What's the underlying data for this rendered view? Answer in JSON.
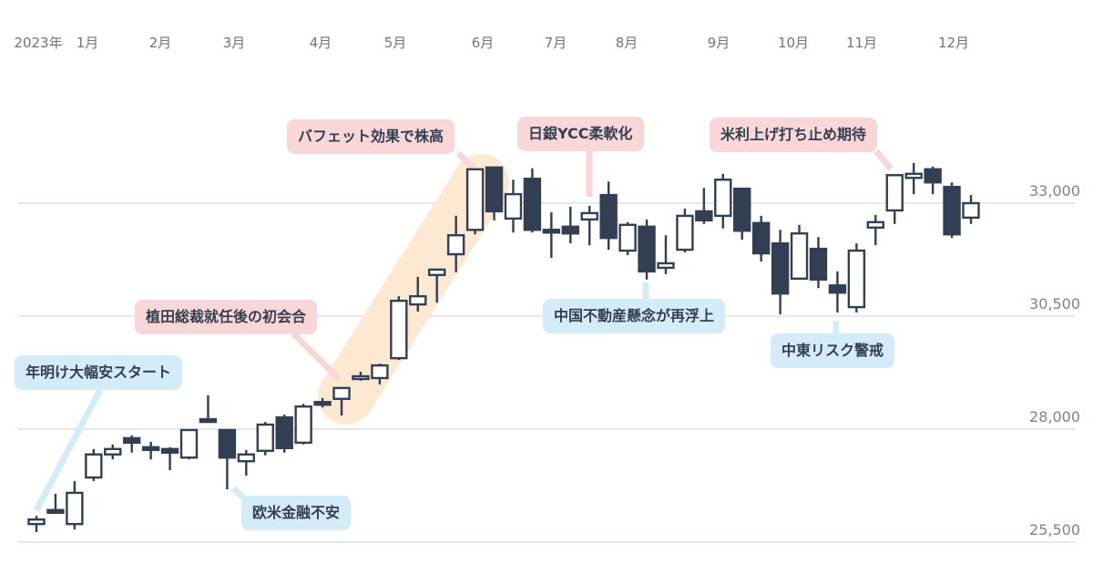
{
  "chart_data": {
    "type": "candlestick",
    "title": "",
    "xlabel": "",
    "ylabel": "",
    "x_tick_labels": [
      "2023年",
      "1月",
      "2月",
      "3月",
      "4月",
      "5月",
      "6月",
      "7月",
      "8月",
      "9月",
      "10月",
      "11月",
      "12月"
    ],
    "y_ticks": [
      25500,
      28000,
      30500,
      33000
    ],
    "y_tick_labels": [
      "25,500",
      "28,000",
      "30,500",
      "33,000"
    ],
    "grid": "horizontal",
    "colors": {
      "up": "#ffffff",
      "down": "#323f52",
      "outline": "#323f52",
      "grid": "#e3e7ef",
      "highlight_band": "#fde8d2",
      "callout_pink": "#f9d6d8",
      "callout_blue": "#d4ecf8"
    },
    "ohlc": [
      [
        25900,
        26080,
        25720,
        26000
      ],
      [
        26210,
        26570,
        26150,
        26170
      ],
      [
        25900,
        26850,
        25780,
        26590
      ],
      [
        26930,
        27560,
        26850,
        27440
      ],
      [
        27440,
        27660,
        27330,
        27560
      ],
      [
        27800,
        27860,
        27480,
        27700
      ],
      [
        27600,
        27720,
        27330,
        27590
      ],
      [
        27560,
        27600,
        27090,
        27480
      ],
      [
        27370,
        27980,
        27330,
        27980
      ],
      [
        28220,
        28750,
        28180,
        28200
      ],
      [
        27980,
        27980,
        26670,
        27370
      ],
      [
        27290,
        27540,
        26970,
        27440
      ],
      [
        27520,
        28160,
        27420,
        28100
      ],
      [
        28260,
        28320,
        27480,
        27580
      ],
      [
        27700,
        28560,
        27660,
        28500
      ],
      [
        28600,
        28690,
        28480,
        28560
      ],
      [
        28670,
        28910,
        28300,
        28910
      ],
      [
        29110,
        29270,
        29070,
        29170
      ],
      [
        29130,
        29450,
        28990,
        29410
      ],
      [
        29570,
        30940,
        29530,
        30840
      ],
      [
        30760,
        31370,
        30600,
        30940
      ],
      [
        31410,
        31530,
        30800,
        31530
      ],
      [
        31870,
        32720,
        31470,
        32290
      ],
      [
        32410,
        33770,
        32310,
        33750
      ],
      [
        33790,
        33790,
        32620,
        32820
      ],
      [
        32660,
        33520,
        32350,
        33200
      ],
      [
        33540,
        33770,
        32350,
        32410
      ],
      [
        32410,
        32800,
        31790,
        32400
      ],
      [
        32480,
        32920,
        32110,
        32330
      ],
      [
        32640,
        32940,
        32070,
        32780
      ],
      [
        33180,
        33480,
        31970,
        32230
      ],
      [
        31950,
        32580,
        31850,
        32520
      ],
      [
        32480,
        32640,
        31310,
        31490
      ],
      [
        31570,
        32290,
        31430,
        31670
      ],
      [
        31970,
        32880,
        31910,
        32720
      ],
      [
        32820,
        33340,
        32540,
        32620
      ],
      [
        32720,
        33650,
        32440,
        33520
      ],
      [
        33320,
        33340,
        32190,
        32390
      ],
      [
        32560,
        32720,
        31710,
        31890
      ],
      [
        32110,
        32410,
        30540,
        31000
      ],
      [
        31330,
        32520,
        31330,
        32330
      ],
      [
        31990,
        32250,
        31120,
        31310
      ],
      [
        31180,
        31490,
        30580,
        31020
      ],
      [
        30700,
        32110,
        30580,
        31950
      ],
      [
        32460,
        32740,
        32070,
        32580
      ],
      [
        32840,
        33620,
        32540,
        33620
      ],
      [
        33560,
        33890,
        33200,
        33650
      ],
      [
        33750,
        33810,
        33200,
        33460
      ],
      [
        33360,
        33460,
        32230,
        32310
      ],
      [
        32680,
        33180,
        32540,
        33000
      ]
    ],
    "annotations": [
      {
        "text": "年明け大幅安スタート",
        "style": "blue"
      },
      {
        "text": "欧米金融不安",
        "style": "blue"
      },
      {
        "text": "植田総裁就任後の初会合",
        "style": "pink"
      },
      {
        "text": "バフェット効果で株高",
        "style": "pink"
      },
      {
        "text": "日銀YCC柔軟化",
        "style": "pink"
      },
      {
        "text": "米利上げ打ち止め期待",
        "style": "pink"
      },
      {
        "text": "中国不動産懸念が再浮上",
        "style": "blue"
      },
      {
        "text": "中東リスク警戒",
        "style": "blue"
      }
    ]
  }
}
